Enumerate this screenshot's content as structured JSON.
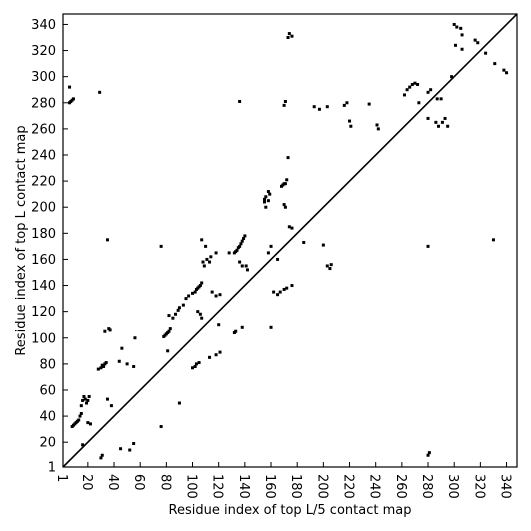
{
  "chart_data": {
    "type": "scatter",
    "title": "",
    "xlabel": "Residue index of top L/5 contact map",
    "ylabel": "Residue index of top L contact map",
    "xlim": [
      1,
      348
    ],
    "ylim": [
      1,
      348
    ],
    "x_ticks": [
      1,
      20,
      40,
      60,
      80,
      100,
      120,
      140,
      160,
      180,
      200,
      220,
      240,
      260,
      280,
      300,
      320,
      340
    ],
    "y_ticks": [
      1,
      20,
      40,
      60,
      80,
      100,
      120,
      140,
      160,
      180,
      200,
      220,
      240,
      260,
      280,
      300,
      320,
      340
    ],
    "diagonal": true,
    "grid": false,
    "points": [
      [
        6,
        292
      ],
      [
        6,
        280
      ],
      [
        7,
        281
      ],
      [
        8,
        282
      ],
      [
        9,
        283
      ],
      [
        29,
        288
      ],
      [
        136,
        281
      ],
      [
        170,
        278
      ],
      [
        171,
        281
      ],
      [
        197,
        275
      ],
      [
        203,
        277
      ],
      [
        216,
        278
      ],
      [
        218,
        280
      ],
      [
        235,
        279
      ],
      [
        262,
        286
      ],
      [
        264,
        290
      ],
      [
        266,
        292
      ],
      [
        268,
        294
      ],
      [
        270,
        295
      ],
      [
        272,
        294
      ],
      [
        273,
        280
      ],
      [
        280,
        288
      ],
      [
        282,
        290
      ],
      [
        280,
        268
      ],
      [
        287,
        283
      ],
      [
        290,
        283
      ],
      [
        291,
        265
      ],
      [
        293,
        268
      ],
      [
        288,
        262
      ],
      [
        286,
        265
      ],
      [
        295,
        262
      ],
      [
        173,
        330
      ],
      [
        174,
        333
      ],
      [
        176,
        331
      ],
      [
        300,
        340
      ],
      [
        302,
        338
      ],
      [
        305,
        337
      ],
      [
        306,
        332
      ],
      [
        301,
        324
      ],
      [
        306,
        321
      ],
      [
        316,
        328
      ],
      [
        318,
        326
      ],
      [
        324,
        318
      ],
      [
        331,
        310
      ],
      [
        338,
        305
      ],
      [
        340,
        303
      ],
      [
        220,
        266
      ],
      [
        221,
        262
      ],
      [
        241,
        263
      ],
      [
        242,
        260
      ],
      [
        168,
        216
      ],
      [
        169,
        217
      ],
      [
        170,
        218
      ],
      [
        171,
        218
      ],
      [
        172,
        221
      ],
      [
        170,
        202
      ],
      [
        171,
        200
      ],
      [
        155,
        204
      ],
      [
        155,
        206
      ],
      [
        158,
        205
      ],
      [
        159,
        210
      ],
      [
        158,
        212
      ],
      [
        156,
        200
      ],
      [
        156,
        208
      ],
      [
        173,
        238
      ],
      [
        174,
        185
      ],
      [
        176,
        184
      ],
      [
        185,
        173
      ],
      [
        200,
        171
      ],
      [
        203,
        155
      ],
      [
        205,
        153
      ],
      [
        206,
        156
      ],
      [
        132,
        165
      ],
      [
        133,
        166
      ],
      [
        134,
        167
      ],
      [
        135,
        169
      ],
      [
        136,
        170
      ],
      [
        137,
        172
      ],
      [
        138,
        174
      ],
      [
        139,
        176
      ],
      [
        140,
        178
      ],
      [
        136,
        158
      ],
      [
        138,
        155
      ],
      [
        141,
        155
      ],
      [
        142,
        152
      ],
      [
        158,
        165
      ],
      [
        160,
        170
      ],
      [
        128,
        165
      ],
      [
        100,
        134
      ],
      [
        102,
        135
      ],
      [
        103,
        137
      ],
      [
        104,
        138
      ],
      [
        105,
        139
      ],
      [
        106,
        140
      ],
      [
        107,
        142
      ],
      [
        108,
        158
      ],
      [
        109,
        155
      ],
      [
        111,
        160
      ],
      [
        113,
        158
      ],
      [
        114,
        162
      ],
      [
        118,
        165
      ],
      [
        107,
        175
      ],
      [
        110,
        170
      ],
      [
        115,
        135
      ],
      [
        118,
        132
      ],
      [
        121,
        133
      ],
      [
        104,
        120
      ],
      [
        106,
        118
      ],
      [
        107,
        115
      ],
      [
        120,
        110
      ],
      [
        165,
        133
      ],
      [
        167,
        135
      ],
      [
        170,
        137
      ],
      [
        172,
        138
      ],
      [
        176,
        140
      ],
      [
        78,
        101
      ],
      [
        79,
        102
      ],
      [
        80,
        103
      ],
      [
        81,
        104
      ],
      [
        82,
        105
      ],
      [
        83,
        107
      ],
      [
        82,
        117
      ],
      [
        85,
        115
      ],
      [
        87,
        118
      ],
      [
        89,
        121
      ],
      [
        90,
        123
      ],
      [
        93,
        125
      ],
      [
        95,
        130
      ],
      [
        97,
        132
      ],
      [
        76,
        170
      ],
      [
        81,
        90
      ],
      [
        100,
        77
      ],
      [
        102,
        78
      ],
      [
        103,
        80
      ],
      [
        105,
        81
      ],
      [
        113,
        85
      ],
      [
        118,
        87
      ],
      [
        121,
        89
      ],
      [
        132,
        104
      ],
      [
        133,
        105
      ],
      [
        138,
        108
      ],
      [
        160,
        108
      ],
      [
        28,
        76
      ],
      [
        30,
        77
      ],
      [
        31,
        79
      ],
      [
        32,
        78
      ],
      [
        33,
        80
      ],
      [
        34,
        81
      ],
      [
        36,
        107
      ],
      [
        37,
        106
      ],
      [
        33,
        105
      ],
      [
        35,
        53
      ],
      [
        38,
        48
      ],
      [
        44,
        82
      ],
      [
        46,
        92
      ],
      [
        50,
        80
      ],
      [
        55,
        78
      ],
      [
        56,
        100
      ],
      [
        76,
        32
      ],
      [
        90,
        50
      ],
      [
        45,
        15
      ],
      [
        52,
        14
      ],
      [
        55,
        19
      ],
      [
        35,
        175
      ],
      [
        8,
        32
      ],
      [
        9,
        33
      ],
      [
        10,
        34
      ],
      [
        11,
        35
      ],
      [
        12,
        36
      ],
      [
        13,
        37
      ],
      [
        14,
        40
      ],
      [
        15,
        42
      ],
      [
        15,
        48
      ],
      [
        16,
        52
      ],
      [
        17,
        55
      ],
      [
        18,
        53
      ],
      [
        19,
        50
      ],
      [
        20,
        52
      ],
      [
        21,
        55
      ],
      [
        20,
        35
      ],
      [
        22,
        34
      ],
      [
        16,
        18
      ],
      [
        30,
        8
      ],
      [
        31,
        10
      ],
      [
        280,
        10
      ],
      [
        281,
        12
      ],
      [
        280,
        170
      ],
      [
        330,
        175
      ],
      [
        165,
        160
      ],
      [
        162,
        135
      ],
      [
        193,
        277
      ],
      [
        298,
        300
      ]
    ]
  }
}
